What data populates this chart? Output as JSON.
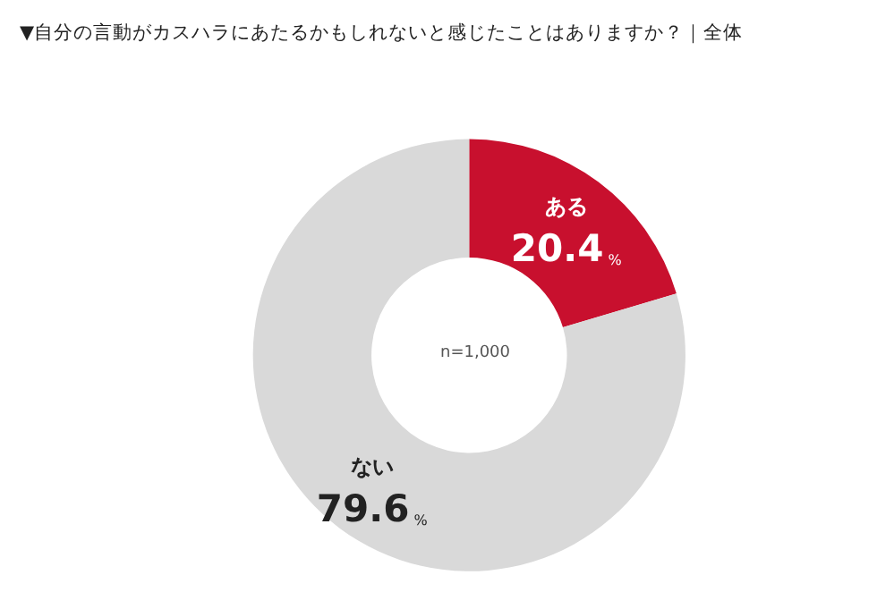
{
  "chart_data": {
    "type": "donut",
    "title": "▼自分の言動がカスハラにあたるかもしれないと感じたことはありますか？｜全体",
    "categories": [
      "ある",
      "ない"
    ],
    "values": [
      20.4,
      79.6
    ],
    "value_labels": [
      "20.4%",
      "79.6%"
    ],
    "colors": [
      "#c8102e",
      "#d9d9d9"
    ],
    "legend": false,
    "annotations": [
      "n=1,000"
    ]
  }
}
